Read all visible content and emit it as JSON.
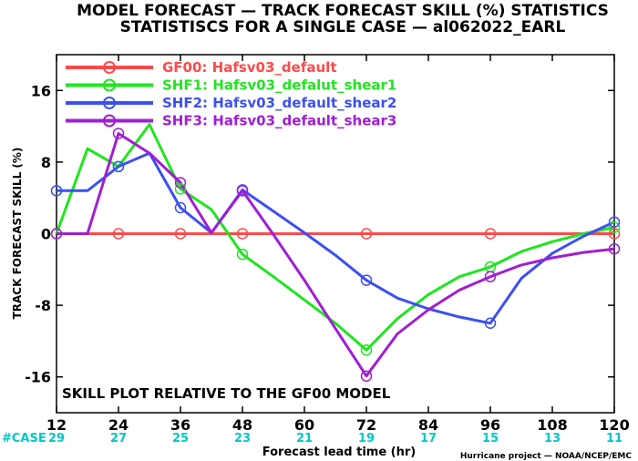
{
  "title_line1": "MODEL FORECAST — TRACK FORECAST SKILL (%) STATISTICS",
  "title_line2": "STATISTISCS FOR A SINGLE CASE — al062022_EARL",
  "annotation": "SKILL PLOT RELATIVE TO THE GF00 MODEL",
  "case_label": "#CASE",
  "case_counts": [
    "29",
    "27",
    "25",
    "23",
    "21",
    "19",
    "17",
    "15",
    "13",
    "11"
  ],
  "credit": "Hurricane project — NOAA/NCEP/EMC",
  "case_color": "#00c8c8",
  "chart_data": {
    "type": "line",
    "title": "MODEL FORECAST — TRACK FORECAST SKILL (%) STATISTICS",
    "subtitle": "STATISTISCS FOR A SINGLE CASE — al062022_EARL",
    "xlabel": "Forecast lead time (hr)",
    "ylabel": "TRACK FORECAST SKILL (%)",
    "xlim": [
      12,
      120
    ],
    "ylim": [
      -20,
      20
    ],
    "x_ticks": [
      12,
      24,
      36,
      48,
      60,
      72,
      84,
      96,
      108,
      120
    ],
    "y_ticks": [
      -16,
      -8,
      0,
      8,
      16
    ],
    "grid": false,
    "legend_position": "top-left",
    "marker_x": [
      12,
      24,
      36,
      48,
      72,
      96,
      120
    ],
    "series": [
      {
        "name": "GF00: Hafsv03_default",
        "color": "#ff4a4a",
        "x": [
          12,
          18,
          24,
          30,
          36,
          42,
          48,
          54,
          60,
          66,
          72,
          78,
          84,
          90,
          96,
          102,
          108,
          114,
          120
        ],
        "values": [
          0,
          0,
          0,
          0,
          0,
          0,
          0,
          0,
          0,
          0,
          0,
          0,
          0,
          0,
          0,
          0,
          0,
          0,
          0
        ]
      },
      {
        "name": "SHF1: Hafsv03_defalut_shear1",
        "color": "#1ee61e",
        "x": [
          12,
          18,
          24,
          30,
          36,
          42,
          48,
          54,
          60,
          66,
          72,
          78,
          84,
          90,
          96,
          102,
          108,
          114,
          120
        ],
        "values": [
          0,
          9.5,
          7.5,
          12.2,
          5.0,
          2.7,
          -2.3,
          -4.8,
          -7.4,
          -10.0,
          -13.0,
          -9.5,
          -6.8,
          -4.8,
          -3.7,
          -2.0,
          -0.9,
          0.0,
          0.7
        ]
      },
      {
        "name": "SHF2: Hafsv03_default_shear2",
        "color": "#3c50f0",
        "x": [
          12,
          18,
          24,
          30,
          36,
          42,
          48,
          54,
          60,
          66,
          72,
          78,
          84,
          90,
          96,
          102,
          108,
          114,
          120
        ],
        "values": [
          4.8,
          4.8,
          7.5,
          9.0,
          2.9,
          0.1,
          4.9,
          2.5,
          0.1,
          -2.4,
          -5.2,
          -7.2,
          -8.4,
          -9.3,
          -10.0,
          -5.0,
          -2.2,
          -0.3,
          1.3
        ]
      },
      {
        "name": "SHF3: Hafsv03_default_shear3",
        "color": "#a01ed2",
        "x": [
          12,
          18,
          24,
          30,
          36,
          42,
          48,
          54,
          60,
          66,
          72,
          78,
          84,
          90,
          96,
          102,
          108,
          114,
          120
        ],
        "values": [
          0,
          0,
          11.2,
          9.0,
          5.7,
          0.1,
          4.8,
          -0.1,
          -5.2,
          -10.6,
          -15.9,
          -11.2,
          -8.5,
          -6.3,
          -4.8,
          -3.5,
          -2.7,
          -2.1,
          -1.7
        ]
      }
    ]
  }
}
